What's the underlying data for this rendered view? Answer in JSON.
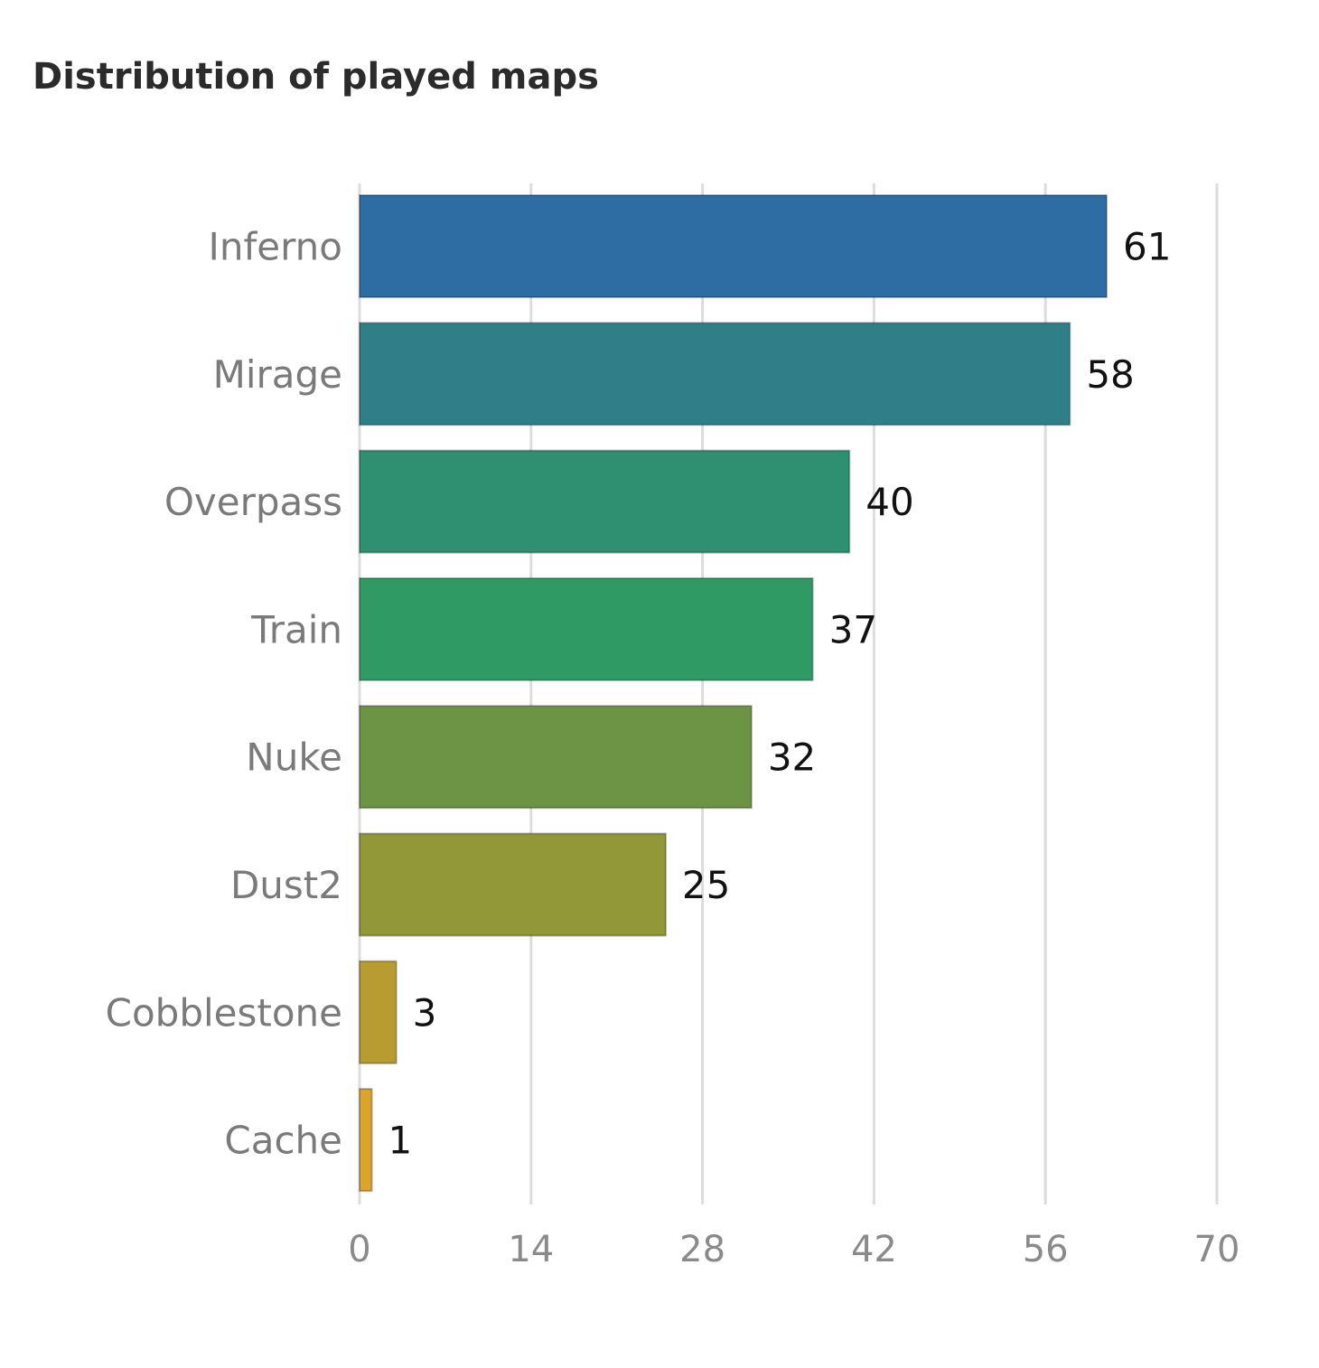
{
  "chart_data": {
    "type": "bar",
    "orientation": "horizontal",
    "title": "Distribution of played maps",
    "categories": [
      "Inferno",
      "Mirage",
      "Overpass",
      "Train",
      "Nuke",
      "Dust2",
      "Cobblestone",
      "Cache"
    ],
    "values": [
      61,
      58,
      40,
      37,
      32,
      25,
      3,
      1
    ],
    "colors": [
      "#2e6da4",
      "#2e7f88",
      "#2e9070",
      "#2f9a64",
      "#6b9444",
      "#929838",
      "#b89c32",
      "#dda42c"
    ],
    "xlim": [
      0,
      70
    ],
    "xticks": [
      0,
      14,
      28,
      42,
      56,
      70
    ],
    "xlabel": "",
    "ylabel": "",
    "grid": true,
    "data_labels": true
  }
}
